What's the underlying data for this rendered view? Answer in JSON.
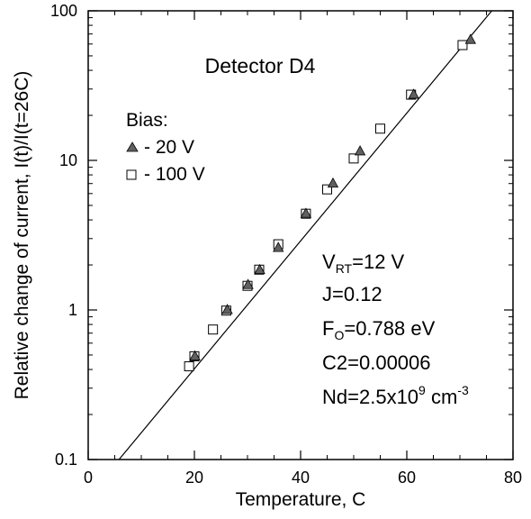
{
  "chart_data": {
    "type": "scatter",
    "title": "Detector D4",
    "xlabel": "Temperature, C",
    "ylabel": "Relative change of current, I(t)/I(t=26C)",
    "xlim": [
      0,
      80
    ],
    "ylim": [
      0.1,
      100
    ],
    "y_scale": "log",
    "x_ticks": [
      0,
      20,
      40,
      60,
      80
    ],
    "x_tick_labels": [
      "0",
      "20",
      "40",
      "60",
      "80"
    ],
    "y_ticks": [
      0.1,
      1,
      10,
      100
    ],
    "y_tick_labels": [
      "0.1",
      "1",
      "10",
      "100"
    ],
    "legend": {
      "title": "Bias:",
      "placement": "upper-left",
      "entries": [
        "- 20 V",
        "- 100 V"
      ]
    },
    "series": [
      {
        "name": "- 20 V",
        "marker": "filled-triangle",
        "color": "#606060",
        "x": [
          20.1,
          26.2,
          30.1,
          32.3,
          35.8,
          41.0,
          46.1,
          51.2,
          61.3,
          72.0
        ],
        "y": [
          0.49,
          1.0,
          1.47,
          1.85,
          2.6,
          4.4,
          7.0,
          11.5,
          27.5,
          64.0
        ]
      },
      {
        "name": "- 100 V",
        "marker": "open-square",
        "color": "#000000",
        "x": [
          19.0,
          20.0,
          23.5,
          26.0,
          30.0,
          32.2,
          35.8,
          41.0,
          45.0,
          50.0,
          55.0,
          60.8,
          70.5
        ],
        "y": [
          0.42,
          0.49,
          0.74,
          0.99,
          1.45,
          1.86,
          2.75,
          4.4,
          6.4,
          10.3,
          16.3,
          27.5,
          59.0
        ]
      }
    ],
    "fit_line": {
      "x": [
        5.8,
        76.0
      ],
      "y": [
        0.1,
        100
      ]
    },
    "annotations": {
      "vrt_main": "V",
      "vrt_sub": "RT",
      "vrt_rest": "=12 V",
      "j": "J=0.12",
      "fo_main": "F",
      "fo_sub": "O",
      "fo_rest": "=0.788 eV",
      "c2": "C",
      "c2_sub": "2",
      "c2_rest": "=0.00006",
      "nd_main": "N",
      "nd_sub": "d",
      "nd_mid": "=2.5x10",
      "nd_sup": "9",
      "nd_unit": " cm",
      "nd_sup2": "-3"
    },
    "grid": false
  }
}
